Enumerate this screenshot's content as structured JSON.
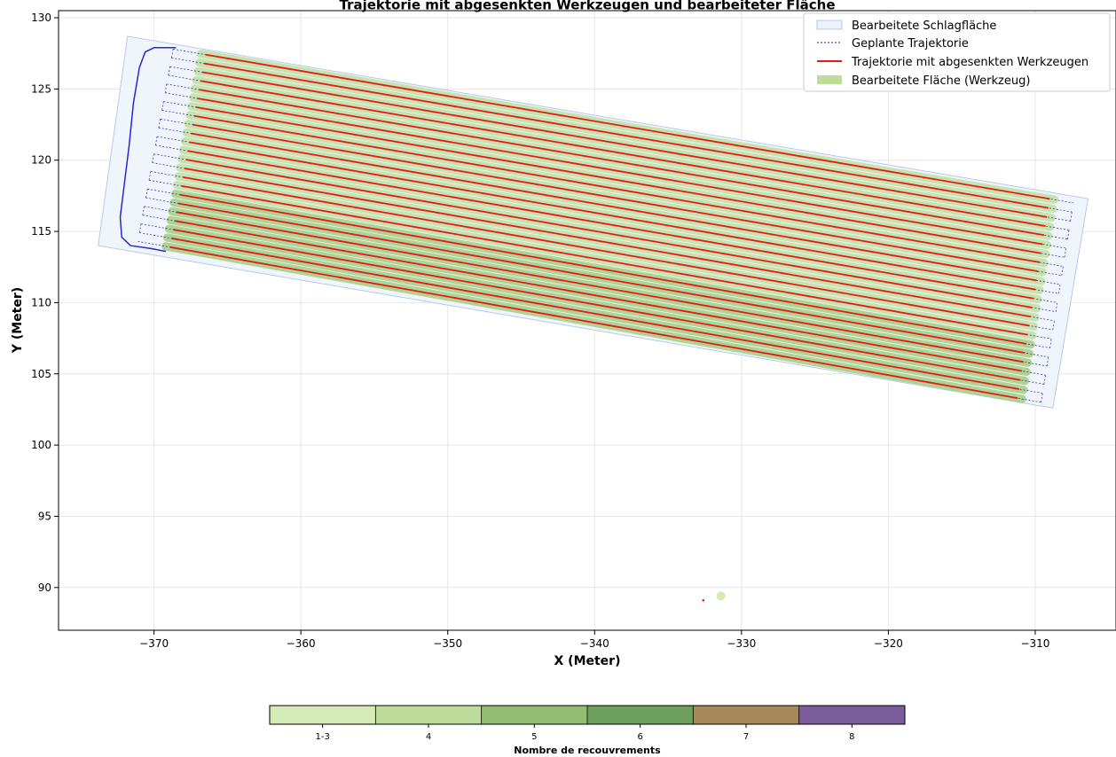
{
  "chart_data": {
    "type": "line",
    "title": "Trajektorie mit abgesenkten Werkzeugen und bearbeiteter Fläche",
    "xlabel": "X (Meter)",
    "ylabel": "Y (Meter)",
    "xlim": [
      -376.5,
      -304.5
    ],
    "ylim": [
      87,
      130.5
    ],
    "xticks": [
      -370,
      -360,
      -350,
      -340,
      -330,
      -320,
      -310
    ],
    "yticks": [
      90,
      95,
      100,
      105,
      110,
      115,
      120,
      125,
      130
    ],
    "xtick_labels": [
      "−370",
      "−360",
      "−350",
      "−340",
      "−330",
      "−320",
      "−310"
    ],
    "ytick_labels": [
      "90",
      "95",
      "100",
      "105",
      "110",
      "115",
      "120",
      "125",
      "130"
    ],
    "grid": true,
    "legend": {
      "position": "top-right",
      "entries": [
        {
          "label": "Bearbeitete Schlagfläche",
          "kind": "patch-outline",
          "color": "#aec7e8"
        },
        {
          "label": "Geplante Trajektorie",
          "kind": "dotted-line",
          "color": "#1f1fbf"
        },
        {
          "label": "Trajektorie mit abgesenkten Werkzeugen",
          "kind": "line",
          "color": "#e31a1c"
        },
        {
          "label": "Bearbeitete Fläche (Werkzeug)",
          "kind": "patch",
          "color": "#bedc9a"
        }
      ]
    },
    "field_polygon": [
      [
        -373.8,
        114.0
      ],
      [
        -371.8,
        128.7
      ],
      [
        -306.4,
        117.3
      ],
      [
        -308.8,
        102.6
      ]
    ],
    "passes": {
      "count": 23,
      "left_start": [
        -371.1,
        114.3
      ],
      "left_end": [
        -368.7,
        127.8
      ],
      "right_start": [
        -309.6,
        103.0
      ],
      "right_end": [
        -307.4,
        117.0
      ],
      "row_spacing_m": 0.61
    },
    "headland_path": [
      [
        -368.5,
        127.9
      ],
      [
        -370.0,
        127.9
      ],
      [
        -370.6,
        127.6
      ],
      [
        -371.0,
        126.5
      ],
      [
        -371.4,
        124.0
      ],
      [
        -371.7,
        121.0
      ],
      [
        -372.0,
        118.5
      ],
      [
        -372.3,
        116.0
      ],
      [
        -372.2,
        114.6
      ],
      [
        -371.6,
        114.0
      ],
      [
        -370.2,
        113.8
      ],
      [
        -369.2,
        113.6
      ]
    ],
    "stray_points": [
      {
        "x": -332.6,
        "y": 89.1,
        "color": "#e31a1c"
      },
      {
        "x": -331.4,
        "y": 89.4,
        "color": "#d4ecb2"
      }
    ],
    "colorbar": {
      "label": "Nombre de recouvrements",
      "categories": [
        "1-3",
        "4",
        "5",
        "6",
        "7",
        "8"
      ],
      "colors": [
        "#d6ecb6",
        "#bedc9a",
        "#94bd74",
        "#6ca05c",
        "#a8895c",
        "#7b5c9c"
      ]
    }
  }
}
